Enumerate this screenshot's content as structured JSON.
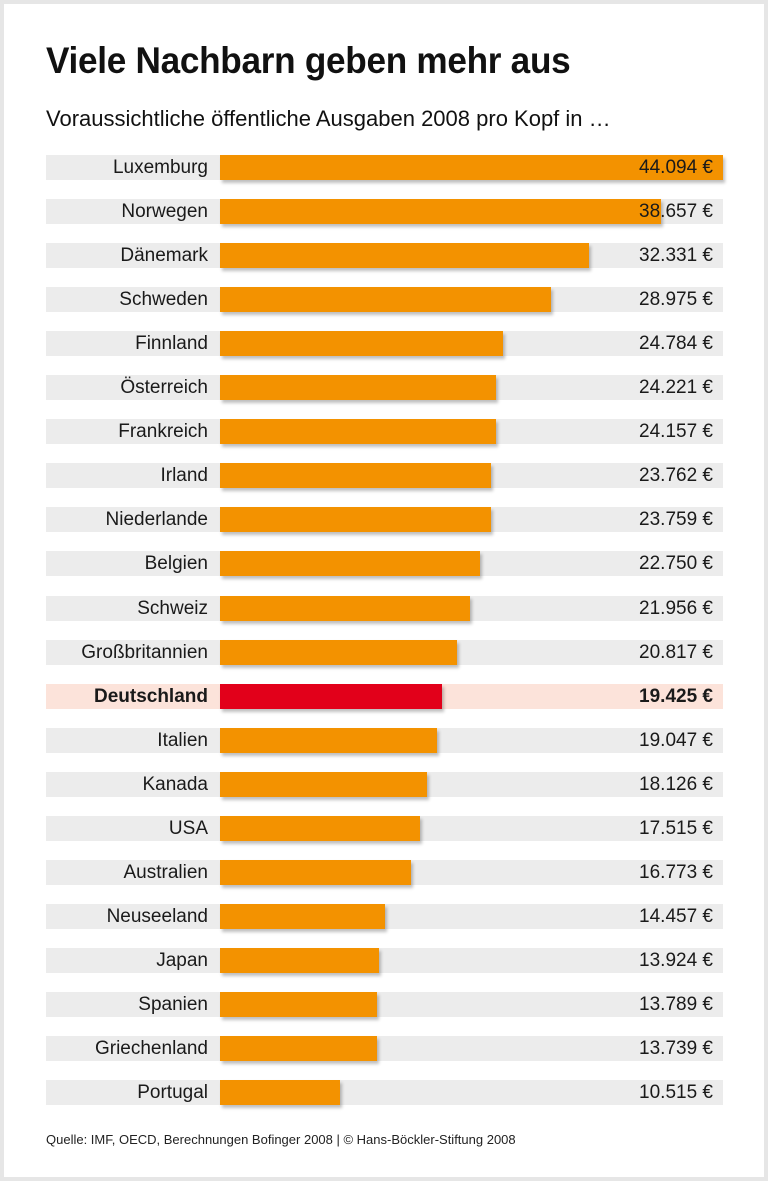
{
  "chart_data": {
    "type": "bar",
    "orientation": "horizontal",
    "title": "Viele Nachbarn geben mehr aus",
    "subtitle": "Voraussichtliche öffentliche Ausgaben 2008 pro Kopf in …",
    "source": "Quelle: IMF, OECD, Berechnungen Bofinger 2008 | © Hans-Böckler-Stiftung 2008",
    "categories": [
      "Luxemburg",
      "Norwegen",
      "Dänemark",
      "Schweden",
      "Finnland",
      "Österreich",
      "Frankreich",
      "Irland",
      "Niederlande",
      "Belgien",
      "Schweiz",
      "Großbritannien",
      "Deutschland",
      "Italien",
      "Kanada",
      "USA",
      "Australien",
      "Neuseeland",
      "Japan",
      "Spanien",
      "Griechenland",
      "Portugal"
    ],
    "values": [
      44094,
      38657,
      32331,
      28975,
      24784,
      24221,
      24157,
      23762,
      23759,
      22750,
      21956,
      20817,
      19425,
      19047,
      18126,
      17515,
      16773,
      14457,
      13924,
      13789,
      13739,
      10515
    ],
    "value_labels": [
      "44.094 €",
      "38.657 €",
      "32.331 €",
      "28.975 €",
      "24.784 €",
      "24.221 €",
      "24.157 €",
      "23.762 €",
      "23.759 €",
      "22.750 €",
      "21.956 €",
      "20.817 €",
      "19.425 €",
      "19.047 €",
      "18.126 €",
      "17.515 €",
      "16.773 €",
      "14.457 €",
      "13.924 €",
      "13.789 €",
      "13.739 €",
      "10.515 €"
    ],
    "highlight": "Deutschland",
    "colors": {
      "bar": "#f39200",
      "highlight_bar": "#e2001a",
      "row_bg": "#ececec",
      "highlight_row_bg": "#fce3da"
    },
    "xlim": [
      0,
      44094
    ],
    "grid": false
  }
}
